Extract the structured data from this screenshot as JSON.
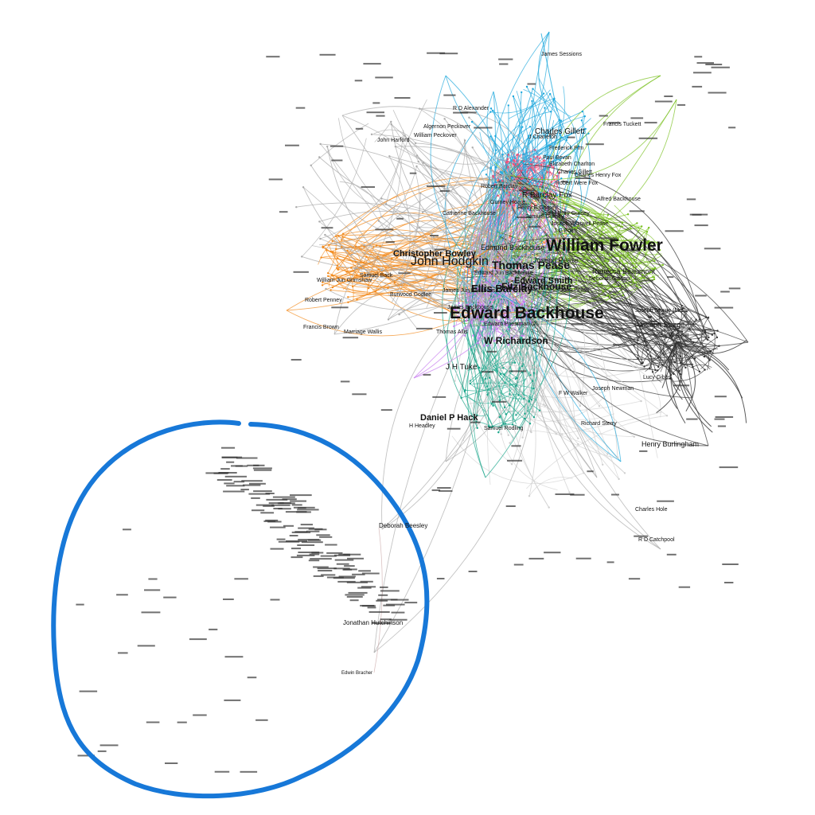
{
  "graph": {
    "colors": {
      "pink": "#f0507a",
      "orange": "#f28a1c",
      "cyan": "#1ca7dc",
      "green": "#79c01f",
      "dark": "#333333",
      "violet": "#c77ef0",
      "teal": "#1aa58a",
      "gray": "#aaaaaa",
      "lightgray": "#cfcfcf",
      "annotation": "#1778d8"
    },
    "labels_xl": [
      "Edward Backhouse",
      "William Fowler",
      "John Hodgkin"
    ],
    "labels_l": [
      "Christopher Bowley",
      "Thomas Pease",
      "Edward Smith",
      "W Richardson",
      "Ellis Barclay",
      "Fitz Backhouse",
      "Daniel P Hack"
    ],
    "labels_m": [
      "Charles Gillett",
      "R Barclay Fox",
      "Rebecca Beaumont",
      "Joseph Pease",
      "Edmund Backhouse",
      "J H Tuke",
      "Joseph Sturge",
      "Henry Burlingham",
      "Deborah Beesley",
      "Jonathan Hutchinson",
      "Edwin Bracher"
    ],
    "labels_s": [
      "Paul Bevan",
      "Elizabeth Charlton",
      "Robert Barclay",
      "Gurney Hoare",
      "Henry E Gurney",
      "J Charleton",
      "Frederick Pim",
      "Robert Were Fox",
      "Charles Henry Fox",
      "Joseph Whitwell Pease",
      "Samuel Gurney",
      "Edward Jun Backhouse",
      "James Jun Backhouse",
      "John Pease",
      "Deborah Gibson",
      "Edward Priestman (2)",
      "Thomas Allis",
      "Lucy Gibbs",
      "W S Gill",
      "Charles Gillett",
      "Richard Sterry",
      "Samuel Rodling",
      "H Headley",
      "Francis Brown",
      "Marriage Wallis",
      "William Jun Grimshaw",
      "Robert Penney",
      "Samuel Back",
      "Burwood Godlee",
      "R D Alexander",
      "Algernon Peckover",
      "John Harford",
      "William Peckover",
      "Francis Tuckett",
      "Joseph Newman",
      "R D Catchpool",
      "Charles Hole",
      "F W Walker",
      "James Backhouse",
      "Alfred Backhouse",
      "Joseph Sturge (Mrs)",
      "Catherine Backhouse",
      "J G Fox",
      "John Henry Gurney",
      "James Sessions"
    ]
  }
}
